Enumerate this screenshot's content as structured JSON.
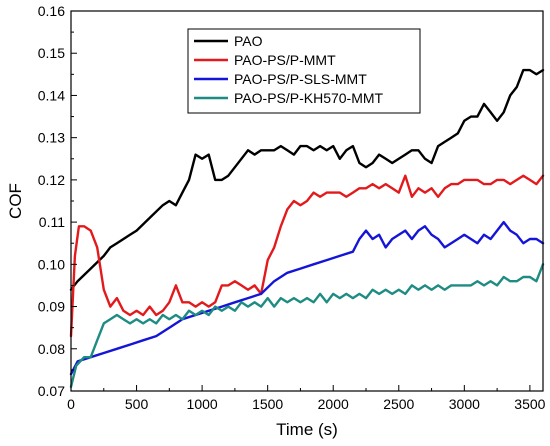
{
  "chart_data": {
    "type": "line",
    "xlabel": "Time (s)",
    "ylabel": "COF",
    "xlim": [
      0,
      3600
    ],
    "ylim": [
      0.07,
      0.16
    ],
    "xticks": [
      "0",
      "500",
      "1000",
      "1500",
      "2000",
      "2500",
      "3000",
      "3500"
    ],
    "yticks": [
      "0.07",
      "0.08",
      "0.09",
      "0.10",
      "0.11",
      "0.12",
      "0.13",
      "0.14",
      "0.15",
      "0.16"
    ],
    "legend_position": "top-right",
    "series": [
      {
        "name": "PAO",
        "color": "#000000",
        "x": [
          0,
          50,
          150,
          250,
          300,
          350,
          450,
          500,
          600,
          700,
          750,
          800,
          850,
          900,
          950,
          1000,
          1050,
          1100,
          1150,
          1200,
          1250,
          1300,
          1350,
          1400,
          1450,
          1500,
          1550,
          1600,
          1650,
          1700,
          1750,
          1800,
          1850,
          1900,
          1950,
          2000,
          2050,
          2100,
          2150,
          2200,
          2250,
          2300,
          2350,
          2400,
          2450,
          2500,
          2550,
          2600,
          2650,
          2700,
          2750,
          2800,
          2850,
          2900,
          2950,
          3000,
          3050,
          3100,
          3150,
          3200,
          3250,
          3300,
          3350,
          3400,
          3450,
          3500,
          3550,
          3600
        ],
        "y": [
          0.094,
          0.096,
          0.099,
          0.102,
          0.104,
          0.105,
          0.107,
          0.108,
          0.111,
          0.114,
          0.115,
          0.114,
          0.117,
          0.12,
          0.126,
          0.125,
          0.126,
          0.12,
          0.12,
          0.121,
          0.123,
          0.125,
          0.127,
          0.126,
          0.127,
          0.127,
          0.127,
          0.128,
          0.127,
          0.126,
          0.128,
          0.128,
          0.127,
          0.128,
          0.127,
          0.128,
          0.125,
          0.127,
          0.128,
          0.124,
          0.123,
          0.124,
          0.126,
          0.125,
          0.124,
          0.125,
          0.126,
          0.127,
          0.127,
          0.125,
          0.124,
          0.128,
          0.129,
          0.13,
          0.131,
          0.134,
          0.135,
          0.135,
          0.138,
          0.136,
          0.134,
          0.136,
          0.14,
          0.142,
          0.146,
          0.146,
          0.145,
          0.146
        ]
      },
      {
        "name": "PAO-PS/P-MMT",
        "color": "#e31a1c",
        "x": [
          0,
          30,
          60,
          100,
          150,
          200,
          250,
          300,
          350,
          400,
          450,
          500,
          550,
          600,
          650,
          700,
          750,
          800,
          850,
          900,
          950,
          1000,
          1050,
          1100,
          1150,
          1200,
          1250,
          1300,
          1350,
          1400,
          1450,
          1500,
          1550,
          1600,
          1650,
          1700,
          1750,
          1800,
          1850,
          1900,
          1950,
          2000,
          2050,
          2100,
          2150,
          2200,
          2250,
          2300,
          2350,
          2400,
          2450,
          2500,
          2550,
          2600,
          2650,
          2700,
          2750,
          2800,
          2850,
          2900,
          2950,
          3000,
          3050,
          3100,
          3150,
          3200,
          3250,
          3300,
          3350,
          3400,
          3450,
          3500,
          3550,
          3600
        ],
        "y": [
          0.083,
          0.102,
          0.109,
          0.109,
          0.108,
          0.104,
          0.094,
          0.09,
          0.092,
          0.089,
          0.088,
          0.089,
          0.088,
          0.09,
          0.088,
          0.089,
          0.091,
          0.095,
          0.091,
          0.091,
          0.09,
          0.091,
          0.09,
          0.091,
          0.095,
          0.095,
          0.096,
          0.095,
          0.094,
          0.095,
          0.093,
          0.101,
          0.104,
          0.109,
          0.113,
          0.115,
          0.114,
          0.115,
          0.117,
          0.116,
          0.117,
          0.117,
          0.117,
          0.116,
          0.117,
          0.118,
          0.118,
          0.119,
          0.118,
          0.119,
          0.118,
          0.117,
          0.121,
          0.116,
          0.118,
          0.117,
          0.118,
          0.116,
          0.118,
          0.119,
          0.119,
          0.12,
          0.12,
          0.12,
          0.119,
          0.119,
          0.12,
          0.12,
          0.119,
          0.12,
          0.121,
          0.12,
          0.119,
          0.121
        ]
      },
      {
        "name": "PAO-PS/P-SLS-MMT",
        "color": "#1515d8",
        "x": [
          0,
          50,
          150,
          250,
          350,
          450,
          550,
          650,
          750,
          850,
          950,
          1050,
          1150,
          1250,
          1350,
          1450,
          1550,
          1650,
          1750,
          1850,
          1950,
          2050,
          2150,
          2200,
          2250,
          2300,
          2350,
          2400,
          2450,
          2500,
          2550,
          2600,
          2650,
          2700,
          2750,
          2800,
          2850,
          2900,
          2950,
          3000,
          3050,
          3100,
          3150,
          3200,
          3250,
          3300,
          3350,
          3400,
          3450,
          3500,
          3550,
          3600
        ],
        "y": [
          0.074,
          0.077,
          0.078,
          0.079,
          0.08,
          0.081,
          0.082,
          0.083,
          0.085,
          0.087,
          0.088,
          0.089,
          0.09,
          0.091,
          0.092,
          0.093,
          0.096,
          0.098,
          0.099,
          0.1,
          0.101,
          0.102,
          0.103,
          0.106,
          0.108,
          0.106,
          0.107,
          0.104,
          0.106,
          0.107,
          0.108,
          0.106,
          0.108,
          0.109,
          0.107,
          0.106,
          0.104,
          0.105,
          0.106,
          0.107,
          0.106,
          0.105,
          0.107,
          0.106,
          0.108,
          0.11,
          0.108,
          0.107,
          0.105,
          0.106,
          0.106,
          0.105
        ]
      },
      {
        "name": "PAO-PS/P-KH570-MMT",
        "color": "#1e8c82",
        "x": [
          0,
          40,
          100,
          150,
          200,
          250,
          300,
          350,
          400,
          450,
          500,
          550,
          600,
          650,
          700,
          750,
          800,
          850,
          900,
          950,
          1000,
          1050,
          1100,
          1150,
          1200,
          1250,
          1300,
          1350,
          1400,
          1450,
          1500,
          1550,
          1600,
          1650,
          1700,
          1750,
          1800,
          1850,
          1900,
          1950,
          2000,
          2050,
          2100,
          2150,
          2200,
          2250,
          2300,
          2350,
          2400,
          2450,
          2500,
          2550,
          2600,
          2650,
          2700,
          2750,
          2800,
          2850,
          2900,
          2950,
          3000,
          3050,
          3100,
          3150,
          3200,
          3250,
          3300,
          3350,
          3400,
          3450,
          3500,
          3550,
          3600
        ],
        "y": [
          0.071,
          0.076,
          0.078,
          0.078,
          0.082,
          0.086,
          0.087,
          0.088,
          0.087,
          0.086,
          0.087,
          0.086,
          0.087,
          0.086,
          0.088,
          0.087,
          0.088,
          0.087,
          0.089,
          0.088,
          0.089,
          0.088,
          0.09,
          0.089,
          0.09,
          0.089,
          0.091,
          0.09,
          0.091,
          0.09,
          0.092,
          0.09,
          0.092,
          0.091,
          0.092,
          0.091,
          0.092,
          0.091,
          0.093,
          0.091,
          0.093,
          0.092,
          0.093,
          0.092,
          0.093,
          0.092,
          0.094,
          0.093,
          0.094,
          0.093,
          0.094,
          0.093,
          0.095,
          0.094,
          0.095,
          0.094,
          0.095,
          0.094,
          0.095,
          0.095,
          0.095,
          0.095,
          0.096,
          0.095,
          0.096,
          0.095,
          0.097,
          0.096,
          0.096,
          0.097,
          0.097,
          0.096,
          0.1
        ]
      }
    ]
  }
}
